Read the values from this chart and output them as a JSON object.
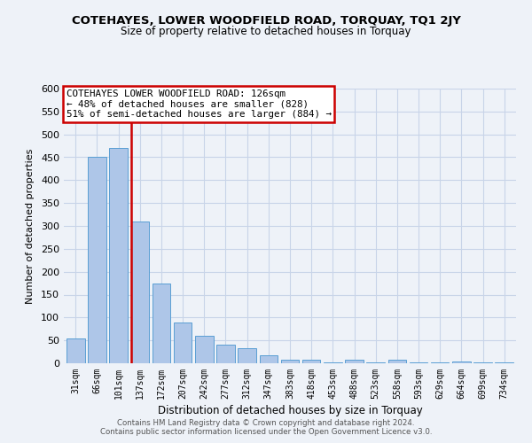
{
  "title": "COTEHAYES, LOWER WOODFIELD ROAD, TORQUAY, TQ1 2JY",
  "subtitle": "Size of property relative to detached houses in Torquay",
  "xlabel": "Distribution of detached houses by size in Torquay",
  "ylabel": "Number of detached properties",
  "bar_labels": [
    "31sqm",
    "66sqm",
    "101sqm",
    "137sqm",
    "172sqm",
    "207sqm",
    "242sqm",
    "277sqm",
    "312sqm",
    "347sqm",
    "383sqm",
    "418sqm",
    "453sqm",
    "488sqm",
    "523sqm",
    "558sqm",
    "593sqm",
    "629sqm",
    "664sqm",
    "699sqm",
    "734sqm"
  ],
  "bar_values": [
    55,
    450,
    470,
    310,
    175,
    90,
    60,
    40,
    33,
    17,
    8,
    7,
    2,
    7,
    2,
    8,
    2,
    1,
    4,
    1,
    2
  ],
  "bar_color": "#aec6e8",
  "bar_edge_color": "#5a9fd4",
  "ref_line_x": 3,
  "ref_line_color": "#cc0000",
  "annotation_title": "COTEHAYES LOWER WOODFIELD ROAD: 126sqm",
  "annotation_line1": "← 48% of detached houses are smaller (828)",
  "annotation_line2": "51% of semi-detached houses are larger (884) →",
  "annotation_box_color": "#ffffff",
  "annotation_box_edge": "#cc0000",
  "ylim": [
    0,
    600
  ],
  "yticks": [
    0,
    50,
    100,
    150,
    200,
    250,
    300,
    350,
    400,
    450,
    500,
    550,
    600
  ],
  "footer1": "Contains HM Land Registry data © Crown copyright and database right 2024.",
  "footer2": "Contains public sector information licensed under the Open Government Licence v3.0.",
  "bg_color": "#eef2f8",
  "grid_color": "#c8d4e8"
}
